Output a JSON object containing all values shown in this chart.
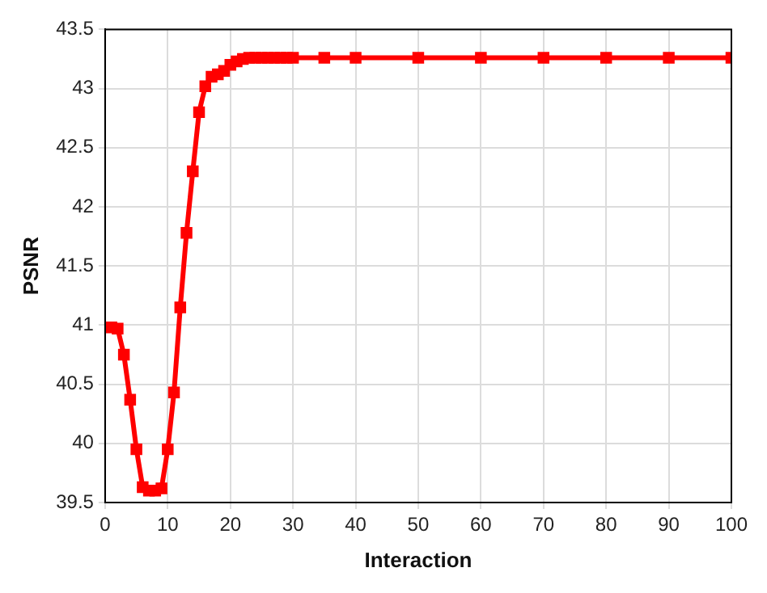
{
  "chart_data": {
    "type": "line",
    "xlabel": "Interaction",
    "ylabel": "PSNR",
    "x": [
      1,
      2,
      3,
      4,
      5,
      6,
      7,
      8,
      9,
      10,
      11,
      12,
      13,
      14,
      15,
      16,
      17,
      18,
      19,
      20,
      21,
      22,
      23,
      24,
      25,
      26,
      27,
      28,
      29,
      30,
      35,
      40,
      50,
      60,
      70,
      80,
      90,
      100
    ],
    "series": [
      {
        "color": "#ff0000",
        "values": [
          40.98,
          40.97,
          40.75,
          40.37,
          39.95,
          39.63,
          39.6,
          39.6,
          39.62,
          39.95,
          40.43,
          41.15,
          41.78,
          42.3,
          42.8,
          43.02,
          43.1,
          43.12,
          43.15,
          43.2,
          43.23,
          43.25,
          43.26,
          43.26,
          43.26,
          43.26,
          43.26,
          43.26,
          43.26,
          43.26,
          43.26,
          43.26,
          43.26,
          43.26,
          43.26,
          43.26,
          43.26,
          43.26
        ]
      }
    ],
    "xlim": [
      0,
      100
    ],
    "xticks": [
      0,
      10,
      20,
      30,
      40,
      50,
      60,
      70,
      80,
      90,
      100
    ],
    "ylim": [
      39.5,
      43.5
    ],
    "yticks": [
      39.5,
      40,
      40.5,
      41,
      41.5,
      42,
      42.5,
      43,
      43.5
    ],
    "grid": true,
    "marker": "square",
    "line_style": "solid",
    "legend": false
  }
}
